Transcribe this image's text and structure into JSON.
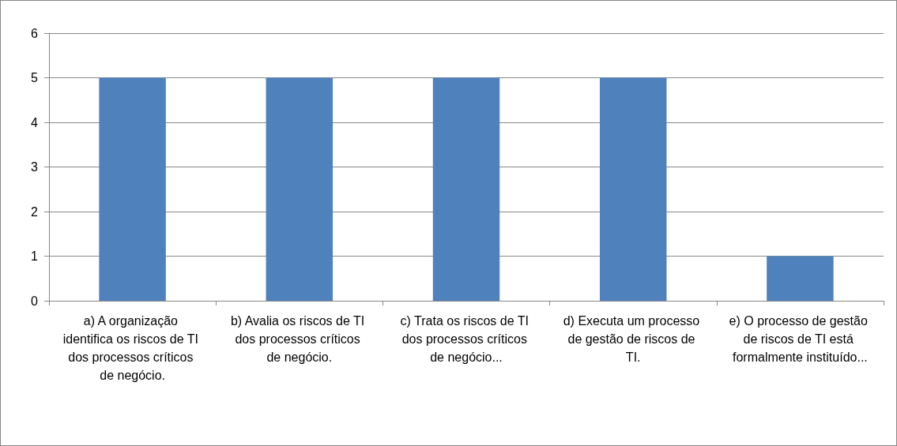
{
  "chart_data": {
    "type": "bar",
    "categories": [
      "a) A organização identifica os riscos de TI dos processos críticos de negócio.",
      "b) Avalia os riscos de TI dos processos críticos de negócio.",
      "c) Trata os riscos de TI dos processos críticos de negócio...",
      "d) Executa um processo de gestão de riscos de TI.",
      "e) O processo de gestão de riscos de TI está formalmente instituído..."
    ],
    "values": [
      5,
      5,
      5,
      5,
      1
    ],
    "color": "#4f81bd",
    "ylim": [
      0,
      6
    ],
    "yticks": [
      0,
      1,
      2,
      3,
      4,
      5,
      6
    ],
    "grid": "y"
  }
}
